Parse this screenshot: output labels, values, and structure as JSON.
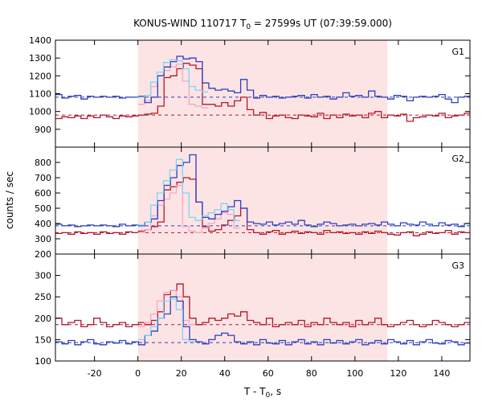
{
  "chart_data": {
    "type": "line",
    "title_main": "KONUS-WIND 110717 T",
    "title_sub": "0",
    "title_rest": " = 27599s UT (07:39:59.000)",
    "xlabel_main": "T - T",
    "xlabel_sub": "0",
    "xlabel_rest": ", s",
    "ylabel": "counts / sec",
    "xlim": [
      -38,
      153
    ],
    "xticks": [
      -20,
      0,
      20,
      40,
      60,
      80,
      100,
      120,
      140
    ],
    "highlight_interval": [
      0,
      115
    ],
    "colors": {
      "highlight": "#fde4e4",
      "blue": "#2b3fbf",
      "light_blue": "#7fd4f6",
      "red": "#b51528",
      "pink": "#f4a6c8",
      "blue_bg": "#2b3fbf",
      "red_bg": "#b51528"
    },
    "panels": [
      {
        "name": "G1",
        "ylim": [
          800,
          1400
        ],
        "yticks": [
          900,
          1000,
          1100,
          1200,
          1300,
          1400
        ],
        "bg_blue": 1080,
        "bg_red": 980,
        "blue": {
          "start": -38,
          "step": 2.944,
          "values": [
            1095,
            1075,
            1085,
            1090,
            1070,
            1085,
            1080,
            1085,
            1080,
            1085,
            1075,
            1080,
            1080,
            1085,
            1050,
            1080,
            1200,
            1250,
            1280,
            1310,
            1295,
            1300,
            1280,
            1160,
            1130,
            1120,
            1125,
            1115,
            1105,
            1180,
            1120,
            1075,
            1090,
            1080,
            1085,
            1075,
            1080,
            1085,
            1090,
            1075,
            1095,
            1080,
            1085,
            1070,
            1080,
            1105,
            1085,
            1090,
            1080,
            1115,
            1085,
            1080,
            1070,
            1090,
            1085,
            1060,
            1080,
            1085,
            1080,
            1085,
            1095,
            1070,
            1050,
            1080,
            1085
          ]
        },
        "cyan": {
          "start": 0,
          "step": 2.944,
          "values": [
            1080,
            1090,
            1165,
            1220,
            1275,
            1290,
            1285,
            1240,
            1140,
            1120,
            1110
          ]
        },
        "red": {
          "start": -38,
          "step": 2.944,
          "values": [
            960,
            970,
            965,
            975,
            960,
            975,
            965,
            980,
            970,
            960,
            975,
            970,
            975,
            980,
            985,
            990,
            1030,
            1190,
            1200,
            1240,
            1270,
            1260,
            1240,
            1040,
            1040,
            1030,
            1050,
            1030,
            1060,
            1080,
            1010,
            980,
            995,
            960,
            975,
            980,
            965,
            960,
            980,
            975,
            970,
            990,
            960,
            980,
            965,
            985,
            975,
            980,
            965,
            990,
            1000,
            965,
            980,
            975,
            985,
            945,
            965,
            970,
            980,
            975,
            990,
            965,
            975,
            980,
            990
          ]
        },
        "pink": {
          "start": 0,
          "step": 2.944,
          "values": [
            1040,
            1060,
            1140,
            1200,
            1230,
            1250,
            1265,
            1170,
            1040,
            1030,
            1020
          ]
        }
      },
      {
        "name": "G2",
        "ylim": [
          200,
          900
        ],
        "yticks": [
          200,
          300,
          400,
          500,
          600,
          700,
          800
        ],
        "bg_blue": 385,
        "bg_red": 340,
        "blue": {
          "start": -38,
          "step": 2.944,
          "values": [
            395,
            385,
            390,
            380,
            385,
            390,
            385,
            390,
            385,
            380,
            395,
            385,
            390,
            385,
            410,
            430,
            550,
            650,
            700,
            780,
            800,
            850,
            540,
            440,
            430,
            460,
            480,
            510,
            550,
            500,
            410,
            400,
            395,
            410,
            390,
            400,
            410,
            395,
            420,
            390,
            380,
            395,
            410,
            400,
            385,
            390,
            395,
            385,
            395,
            400,
            390,
            410,
            395,
            385,
            405,
            395,
            390,
            410,
            395,
            385,
            405,
            390,
            395,
            380,
            400
          ]
        },
        "cyan": {
          "start": 0,
          "step": 2.944,
          "values": [
            390,
            410,
            520,
            600,
            680,
            750,
            820,
            600,
            440,
            420,
            450,
            470,
            490,
            530,
            490,
            420
          ]
        },
        "red": {
          "start": -38,
          "step": 2.944,
          "values": [
            335,
            340,
            330,
            345,
            335,
            340,
            330,
            345,
            335,
            340,
            330,
            345,
            340,
            350,
            360,
            380,
            410,
            620,
            640,
            670,
            700,
            690,
            540,
            380,
            350,
            360,
            390,
            420,
            450,
            500,
            360,
            340,
            330,
            345,
            355,
            330,
            340,
            350,
            335,
            345,
            340,
            330,
            355,
            340,
            345,
            335,
            340,
            330,
            345,
            335,
            350,
            340,
            330,
            325,
            340,
            345,
            320,
            330,
            345,
            335,
            340,
            355,
            330,
            345,
            340
          ]
        },
        "pink": {
          "start": 0,
          "step": 2.944,
          "values": [
            340,
            360,
            450,
            520,
            560,
            600,
            650,
            380,
            350,
            340,
            370,
            400,
            430,
            470,
            460,
            370
          ]
        }
      },
      {
        "name": "G3",
        "ylim": [
          100,
          350
        ],
        "yticks": [
          100,
          150,
          200,
          250,
          300
        ],
        "bg_blue": 143,
        "bg_red": 185,
        "blue": {
          "start": -38,
          "step": 2.944,
          "values": [
            145,
            140,
            148,
            138,
            145,
            150,
            140,
            138,
            145,
            142,
            148,
            140,
            145,
            138,
            160,
            170,
            200,
            210,
            250,
            240,
            180,
            150,
            145,
            140,
            150,
            160,
            165,
            160,
            145,
            140,
            145,
            138,
            150,
            142,
            140,
            148,
            138,
            145,
            150,
            140,
            145,
            138,
            150,
            142,
            148,
            140,
            145,
            150,
            138,
            142,
            148,
            140,
            150,
            145,
            140,
            148,
            138,
            145,
            150,
            142,
            140,
            148,
            145,
            138,
            142
          ]
        },
        "cyan": {
          "start": 0,
          "step": 2.944,
          "values": [
            150,
            160,
            180,
            200,
            240,
            245,
            220,
            150,
            145
          ]
        },
        "red": {
          "start": -38,
          "step": 2.944,
          "values": [
            200,
            185,
            190,
            195,
            180,
            185,
            200,
            190,
            180,
            185,
            190,
            180,
            185,
            190,
            185,
            195,
            215,
            255,
            265,
            280,
            250,
            200,
            185,
            190,
            200,
            195,
            200,
            210,
            205,
            215,
            195,
            190,
            185,
            200,
            180,
            185,
            190,
            185,
            195,
            180,
            190,
            185,
            200,
            190,
            185,
            190,
            180,
            195,
            185,
            190,
            200,
            185,
            180,
            185,
            190,
            195,
            185,
            180,
            185,
            195,
            190,
            185,
            180,
            185,
            190
          ]
        },
        "pink": {
          "start": 0,
          "step": 2.944,
          "values": [
            180,
            190,
            210,
            240,
            260,
            265,
            250,
            195,
            185
          ]
        }
      }
    ]
  }
}
